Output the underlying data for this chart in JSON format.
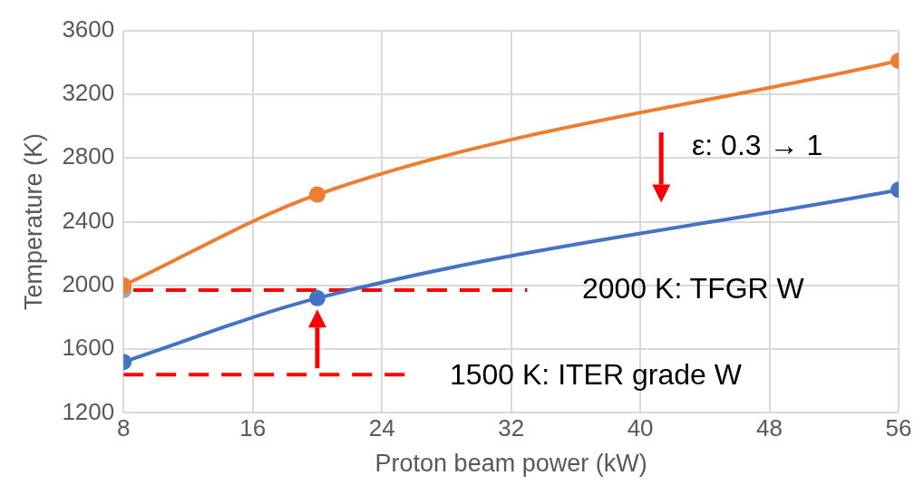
{
  "chart_data": {
    "type": "line",
    "xlabel": "Proton beam power (kW)",
    "ylabel": "Temperature (K)",
    "xlim": [
      8,
      56
    ],
    "xticks": [
      8,
      16,
      24,
      32,
      40,
      48,
      56
    ],
    "ylim": [
      1200,
      3600
    ],
    "yticks": [
      1200,
      1600,
      2000,
      2400,
      2800,
      3200,
      3600
    ],
    "grid": true,
    "legend": false,
    "marker": "circle",
    "series": [
      {
        "color": "#ed7d31",
        "x": [
          8,
          20,
          56
        ],
        "values": [
          2000,
          2570,
          3410
        ]
      },
      {
        "color": "#4472c4",
        "x": [
          8,
          20,
          56
        ],
        "values": [
          1520,
          1920,
          2600
        ]
      },
      {
        "type": "scatter",
        "color": "#a5a5a5",
        "x": [
          8
        ],
        "values": [
          1970
        ]
      },
      {
        "color": "#ff0000",
        "x": [
          8.6,
          33
        ],
        "values": [
          1970,
          1970
        ],
        "line_style": "dashed",
        "marker": "none"
      },
      {
        "color": "#ff0000",
        "x": [
          8,
          25.5
        ],
        "values": [
          1440,
          1440
        ],
        "line_style": "dashed",
        "marker": "none"
      }
    ],
    "annotations": [
      "2000 K: TFGR W",
      "1500 K: ITER grade W",
      "ε: 0.3 → 1"
    ]
  }
}
